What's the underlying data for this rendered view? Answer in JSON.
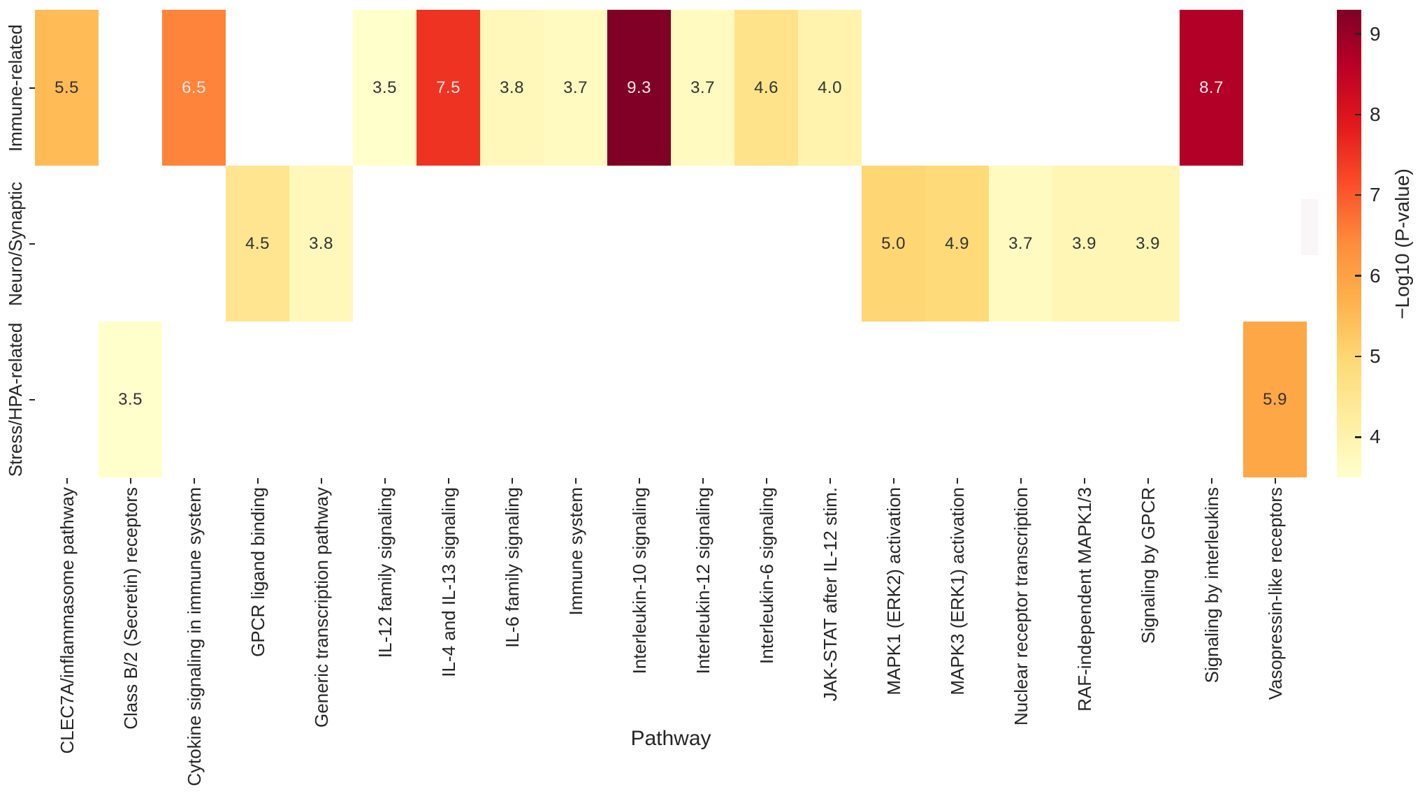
{
  "figure": {
    "background": "#ffffff",
    "text_color": "#262626",
    "annotation_dark_color": "#333333",
    "annotation_light_color": "#f3e9e9"
  },
  "chart_data": {
    "type": "heatmap",
    "title": "",
    "xlabel": "Pathway",
    "ylabel": "",
    "colorbar_label": "−Log10 (P-value)",
    "legend_position": "right-colorbar",
    "grid": false,
    "rows": [
      "Immune-related",
      "Neuro/Synaptic",
      "Stress/HPA-related"
    ],
    "columns": [
      "CLEC7A/inflammasome pathway",
      "Class B/2 (Secretin) receptors",
      "Cytokine signaling in immune system",
      "GPCR ligand binding",
      "Generic transcription pathway",
      "IL-12 family signaling",
      "IL-4 and IL-13 signaling",
      "IL-6 family signaling",
      "Immune system",
      "Interleukin-10 signaling",
      "Interleukin-12 signaling",
      "Interleukin-6 signaling",
      "JAK-STAT after IL-12 stim.",
      "MAPK1 (ERK2) activation",
      "MAPK3 (ERK1) activation",
      "Nuclear receptor transcription",
      "RAF-independent MAPK1/3",
      "Signaling by GPCR",
      "Signaling by interleukins",
      "Vasopressin-like receptors"
    ],
    "values": [
      [
        5.5,
        null,
        6.5,
        null,
        null,
        3.5,
        7.5,
        3.8,
        3.7,
        9.3,
        3.7,
        4.6,
        4.0,
        null,
        null,
        null,
        null,
        null,
        8.7,
        null
      ],
      [
        null,
        null,
        null,
        4.5,
        3.8,
        null,
        null,
        null,
        null,
        null,
        null,
        null,
        null,
        5.0,
        4.9,
        3.7,
        3.9,
        3.9,
        null,
        null
      ],
      [
        null,
        3.5,
        null,
        null,
        null,
        null,
        null,
        null,
        null,
        null,
        null,
        null,
        null,
        null,
        null,
        null,
        null,
        null,
        null,
        5.9
      ]
    ],
    "value_format": "1-decimal",
    "color_scale": {
      "name": "YlOrRd",
      "vmin": 3.5,
      "vmax": 9.3,
      "stops": [
        "#FFFFCC",
        "#FFEDA0",
        "#FED976",
        "#FEB24C",
        "#FD8D3C",
        "#FC4E2A",
        "#E31A1C",
        "#BD0026",
        "#800026"
      ]
    },
    "colorbar_ticks": [
      "9",
      "8",
      "7",
      "6",
      "5",
      "4"
    ],
    "colorbar_tick_values": [
      9,
      8,
      7,
      6,
      5,
      4
    ]
  }
}
